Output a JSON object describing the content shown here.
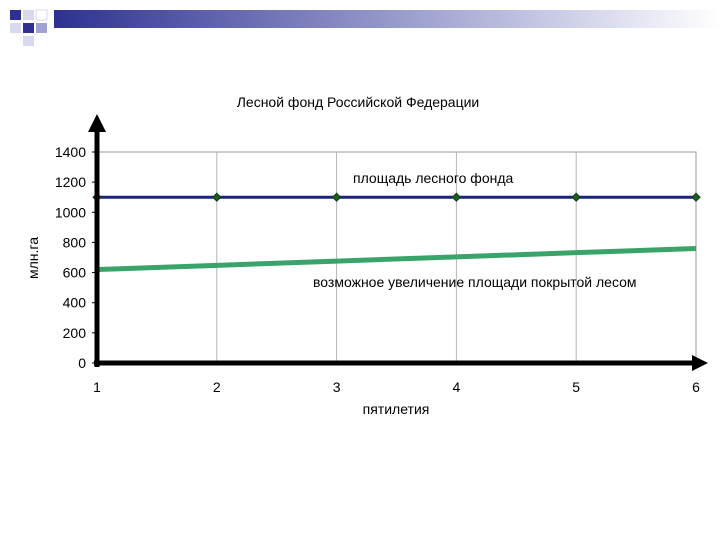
{
  "chart_data": {
    "type": "line",
    "title": "Лесной фонд Российской Федерации",
    "xlabel": "пятилетия",
    "ylabel": "млн.га",
    "x": [
      1,
      2,
      3,
      4,
      5,
      6
    ],
    "ylim": [
      0,
      1400
    ],
    "yticks": [
      0,
      200,
      400,
      600,
      800,
      1000,
      1200,
      1400
    ],
    "grid": "vertical",
    "series": [
      {
        "name": "площадь лесного фонда",
        "values": [
          1100,
          1100,
          1100,
          1100,
          1100,
          1100
        ],
        "color": "#1a237e",
        "marker": "diamond"
      },
      {
        "name": "возможное увеличение площади покрытой лесом",
        "values": [
          620,
          648,
          676,
          704,
          732,
          760
        ],
        "color": "#3aa36a",
        "marker": "none"
      }
    ]
  },
  "colors": {
    "header_gradient_start": "#2e3192",
    "header_gradient_end": "#ffffff",
    "header_square": "#2e3192"
  }
}
